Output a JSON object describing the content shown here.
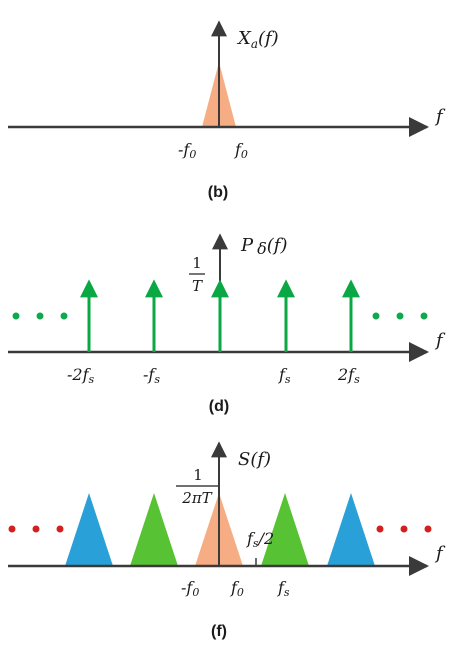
{
  "colors": {
    "axis": "#3a3a3a",
    "orange": "#f6ad83",
    "green": "#57c234",
    "blue": "#2aa0d9",
    "impulse": "#0aa845",
    "dots_green": "#10a84e",
    "dots_red": "#d21f1f"
  },
  "panel_b": {
    "caption": "(b)",
    "func_label": "X",
    "func_sub": "a",
    "func_arg": "(f)",
    "axis_label": "f",
    "tick_neg": "-f",
    "tick_neg_sub": "0",
    "tick_pos": "f",
    "tick_pos_sub": "0"
  },
  "panel_d": {
    "caption": "(d)",
    "func_label": "P",
    "func_sym": "δ",
    "func_arg": "(f)",
    "frac_num": "1",
    "frac_den": "T",
    "axis_label": "f",
    "ticks": [
      {
        "main": "-2f",
        "sub": "s"
      },
      {
        "main": "-f",
        "sub": "s"
      },
      {
        "main": "f",
        "sub": "s"
      },
      {
        "main": "2f",
        "sub": "s"
      }
    ],
    "ellipsis": "• • •"
  },
  "panel_f": {
    "caption": "(f)",
    "func_label": "S(f)",
    "frac_num": "1",
    "frac_den": "2πT",
    "axis_label": "f",
    "half_label": "f",
    "half_sub": "s",
    "half_tail": "/2",
    "tick_neg": "-f",
    "tick_neg_sub": "0",
    "tick_zero": "f",
    "tick_zero_sub": "0",
    "tick_fs": "f",
    "tick_fs_sub": "s",
    "ellipsis": "• • •"
  }
}
